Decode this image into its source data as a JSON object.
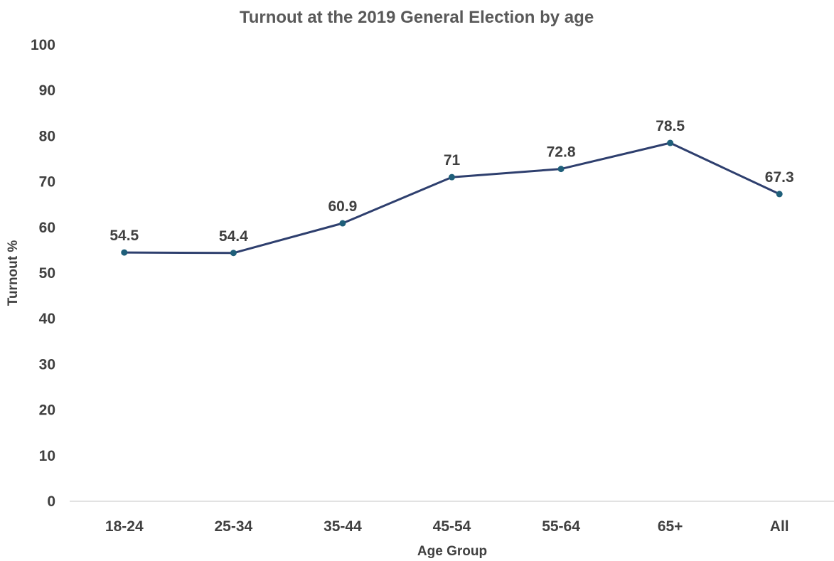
{
  "chart_data": {
    "type": "line",
    "title": "Turnout at the 2019 General Election by age",
    "xlabel": "Age Group",
    "ylabel": "Turnout %",
    "categories": [
      "18-24",
      "25-34",
      "35-44",
      "45-54",
      "55-64",
      "65+",
      "All"
    ],
    "values": [
      54.5,
      54.4,
      60.9,
      71,
      72.8,
      78.5,
      67.3
    ],
    "data_labels": [
      "54.5",
      "54.4",
      "60.9",
      "71",
      "72.8",
      "78.5",
      "67.3"
    ],
    "ylim": [
      0,
      100
    ],
    "yticks": [
      "0",
      "10",
      "20",
      "30",
      "40",
      "50",
      "60",
      "70",
      "80",
      "90",
      "100"
    ],
    "grid": false,
    "legend": "none",
    "colors": {
      "line": "#2E3F6E",
      "marker": "#1F5F7A",
      "axis": "#D9D9D9"
    }
  }
}
